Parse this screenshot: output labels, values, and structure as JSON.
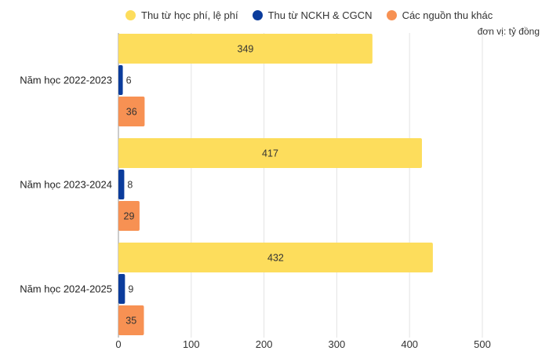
{
  "chart_data": {
    "type": "bar",
    "orientation": "horizontal",
    "unit_label": "đơn vị: tỷ đồng",
    "categories": [
      "Năm học 2022-2023",
      "Năm học 2023-2024",
      "Năm học 2024-2025"
    ],
    "series": [
      {
        "name": "Thu từ học phí, lệ phí",
        "color": "#FDDD5C",
        "values": [
          349,
          417,
          432
        ]
      },
      {
        "name": "Thu từ NCKH & CGCN",
        "color": "#0B3C9C",
        "values": [
          6,
          8,
          9
        ]
      },
      {
        "name": "Các nguồn thu khác",
        "color": "#F79153",
        "values": [
          36,
          29,
          35
        ]
      }
    ],
    "xlim": [
      0,
      500
    ],
    "xticks": [
      0,
      100,
      200,
      300,
      400,
      500
    ],
    "grid": true,
    "legend_position": "top"
  }
}
